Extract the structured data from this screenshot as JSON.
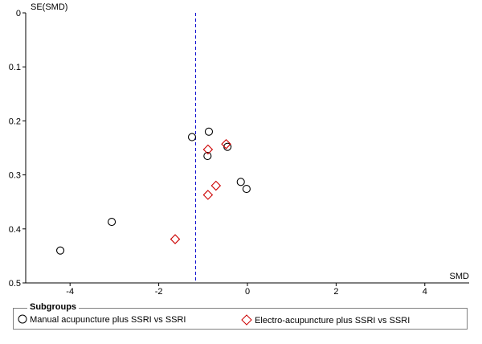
{
  "chart_data": {
    "type": "scatter",
    "title": "",
    "xlabel": "SMD",
    "ylabel": "SE(SMD)",
    "xlim": [
      -5,
      5
    ],
    "ylim": [
      0,
      0.5
    ],
    "y_reversed": true,
    "x_ticks": [
      -4,
      -2,
      0,
      2,
      4
    ],
    "y_ticks": [
      0,
      0.1,
      0.2,
      0.3,
      0.4,
      0.5
    ],
    "pooled_effect_line": {
      "x": -1.17,
      "style": "dashed",
      "color": "#0000cc"
    },
    "grid": false,
    "legend_placement": "bottom",
    "legend_title": "Subgroups",
    "series": [
      {
        "name": "Manual acupuncture plus SSRI vs SSRI",
        "marker": "circle",
        "color": "#000000",
        "points": [
          {
            "x": -4.22,
            "y": 0.44
          },
          {
            "x": -3.06,
            "y": 0.387
          },
          {
            "x": -1.25,
            "y": 0.23
          },
          {
            "x": -0.87,
            "y": 0.22
          },
          {
            "x": -0.9,
            "y": 0.265
          },
          {
            "x": -0.45,
            "y": 0.248
          },
          {
            "x": -0.15,
            "y": 0.313
          },
          {
            "x": -0.02,
            "y": 0.326
          }
        ]
      },
      {
        "name": "Electro-acupuncture plus SSRI vs SSRI",
        "marker": "diamond",
        "color": "#cc0000",
        "points": [
          {
            "x": -1.63,
            "y": 0.419
          },
          {
            "x": -0.89,
            "y": 0.253
          },
          {
            "x": -0.48,
            "y": 0.243
          },
          {
            "x": -0.71,
            "y": 0.32
          },
          {
            "x": -0.89,
            "y": 0.337
          }
        ]
      }
    ]
  }
}
